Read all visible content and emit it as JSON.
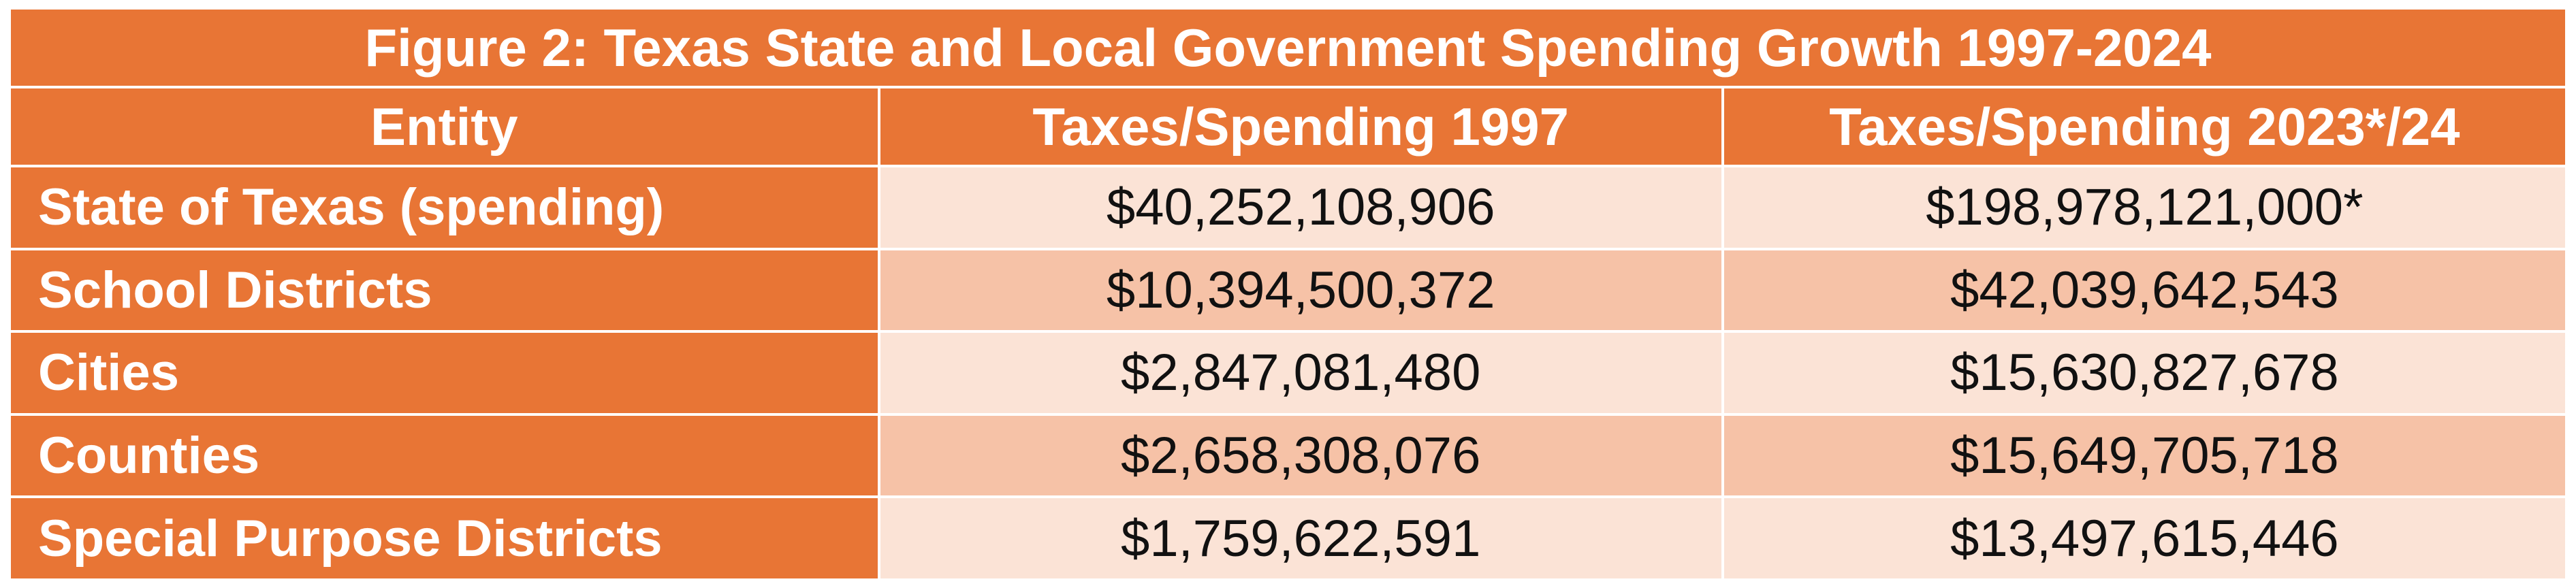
{
  "table": {
    "title": "Figure 2: Texas State and Local Government Spending Growth 1997-2024",
    "headers": [
      "Entity",
      "Taxes/Spending 1997",
      "Taxes/Spending 2023*/24"
    ],
    "rows": [
      {
        "entity": "State of Texas (spending)",
        "y1997": "$40,252,108,906",
        "y2024": "$198,978,121,000*"
      },
      {
        "entity": "School Districts",
        "y1997": "$10,394,500,372",
        "y2024": "$42,039,642,543"
      },
      {
        "entity": "Cities",
        "y1997": "$2,847,081,480",
        "y2024": "$15,630,827,678"
      },
      {
        "entity": "Counties",
        "y1997": "$2,658,308,076",
        "y2024": "$15,649,705,718"
      },
      {
        "entity": "Special Purpose Districts",
        "y1997": "$1,759,622,591",
        "y2024": "$13,497,615,446"
      }
    ]
  },
  "colors": {
    "header_orange": "#e87535",
    "row_light": "#fbe3d6",
    "row_dark": "#f6c2a7"
  }
}
